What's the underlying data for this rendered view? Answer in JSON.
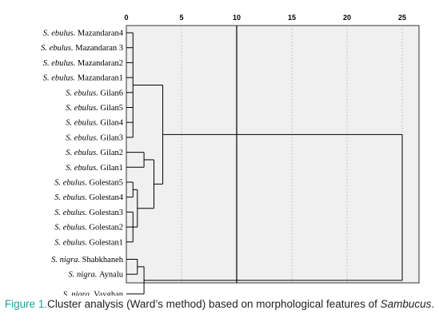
{
  "chart_data": {
    "type": "dendrogram",
    "method": "Ward's method",
    "x_axis": {
      "ticks": [
        0,
        5,
        10,
        15,
        20,
        25
      ],
      "range": [
        0,
        25
      ]
    },
    "reference_line_x": 10,
    "grid": "dotted vertical",
    "leaves": [
      {
        "species": "S. ebulus.",
        "site": "Mazandaran4"
      },
      {
        "species": "S. ebulus.",
        "site": "Mazandaran 3"
      },
      {
        "species": "S. ebulus.",
        "site": "Mazandaran2"
      },
      {
        "species": "S. ebulus.",
        "site": "Mazandaran1"
      },
      {
        "species": "S. ebulus.",
        "site": "Gilan6"
      },
      {
        "species": "S. ebulus.",
        "site": "Gilan5"
      },
      {
        "species": "S. ebulus.",
        "site": "Gilan4"
      },
      {
        "species": "S. ebulus.",
        "site": "Gilan3"
      },
      {
        "species": "S. ebulus.",
        "site": "Gilan2"
      },
      {
        "species": "S. ebulus.",
        "site": "Gilan1"
      },
      {
        "species": "S. ebulus.",
        "site": "Golestan5"
      },
      {
        "species": "S. ebulus.",
        "site": "Golestan4"
      },
      {
        "species": "S. ebulus.",
        "site": "Golestan3"
      },
      {
        "species": "S. ebulus.",
        "site": "Golestan2"
      },
      {
        "species": "S. ebulus.",
        "site": "Golestan1"
      },
      {
        "species": "S. nigra.",
        "site": "Shabkhaneh"
      },
      {
        "species": "S. nigra.",
        "site": "Aynalu"
      },
      {
        "species": "S. nigra.",
        "site": "Vayghan"
      }
    ],
    "merges": [
      {
        "id": "A",
        "children": [
          0,
          1,
          2,
          3,
          4,
          5,
          6,
          7
        ],
        "height": 0.6
      },
      {
        "id": "B",
        "children": [
          8,
          9
        ],
        "height": 1.6
      },
      {
        "id": "C",
        "children": [
          10,
          11
        ],
        "height": 0.6
      },
      {
        "id": "D",
        "children": [
          12,
          13,
          14
        ],
        "height": 0.6
      },
      {
        "id": "E",
        "children": [
          "C",
          "D"
        ],
        "height": 1.0
      },
      {
        "id": "F",
        "children": [
          "B",
          "E"
        ],
        "height": 2.5
      },
      {
        "id": "G",
        "children": [
          "A",
          "F"
        ],
        "height": 3.3
      },
      {
        "id": "H",
        "children": [
          15,
          16
        ],
        "height": 1.0
      },
      {
        "id": "I",
        "children": [
          "H",
          17
        ],
        "height": 1.6
      },
      {
        "id": "J",
        "children": [
          "G",
          "I"
        ],
        "height": 25.0
      }
    ]
  },
  "caption": {
    "label": "Figure 1.",
    "text_before": "Cluster analysis (Ward’s method) based on morphological features of ",
    "italic": "Sambucus",
    "text_after": "."
  },
  "colors": {
    "figure_label": "#1aa39a",
    "plot_bg": "#f0f0f0"
  }
}
